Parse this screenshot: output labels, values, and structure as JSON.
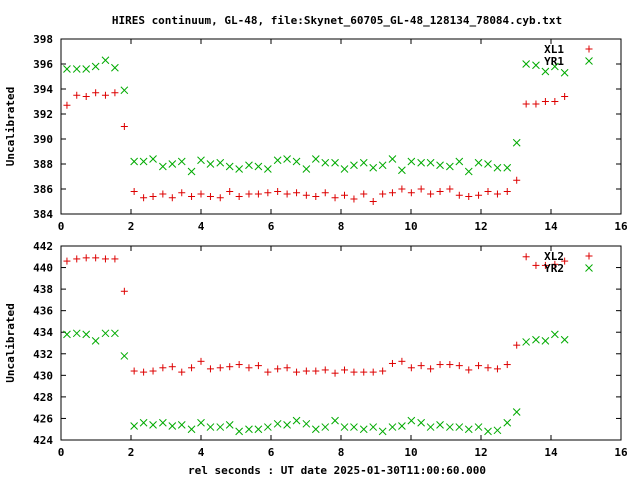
{
  "title": "HIRES continuum, GL-48, file:Skynet_60705_GL-48_128134_78084.cyb.txt",
  "xlabel": "rel seconds : UT date 2025-01-30T11:00:60.000",
  "colors": {
    "red": "#dd0000",
    "green": "#00aa00"
  },
  "chart_data": [
    {
      "type": "scatter",
      "ylabel": "Uncalibrated",
      "xlim": [
        0,
        16
      ],
      "ylim": [
        384,
        398
      ],
      "xticks": [
        0,
        2,
        4,
        6,
        8,
        10,
        12,
        14,
        16
      ],
      "yticks": [
        384,
        386,
        388,
        390,
        392,
        394,
        396,
        398
      ],
      "legend_position": "top-right",
      "series": [
        {
          "name": "XL1",
          "marker": "plus",
          "color": "#dd0000",
          "x": [
            0.17,
            0.45,
            0.72,
            0.99,
            1.27,
            1.54,
            1.81,
            2.09,
            2.36,
            2.63,
            2.91,
            3.18,
            3.45,
            3.73,
            4.0,
            4.27,
            4.55,
            4.82,
            5.09,
            5.37,
            5.64,
            5.91,
            6.19,
            6.46,
            6.73,
            7.01,
            7.28,
            7.55,
            7.83,
            8.1,
            8.37,
            8.65,
            8.92,
            9.19,
            9.47,
            9.74,
            10.01,
            10.29,
            10.56,
            10.83,
            11.11,
            11.38,
            11.65,
            11.93,
            12.2,
            12.47,
            12.75,
            13.02,
            13.29,
            13.57,
            13.84,
            14.11,
            14.39
          ],
          "y": [
            392.7,
            393.5,
            393.4,
            393.7,
            393.5,
            393.7,
            391.0,
            385.8,
            385.3,
            385.4,
            385.6,
            385.3,
            385.7,
            385.4,
            385.6,
            385.4,
            385.3,
            385.8,
            385.4,
            385.6,
            385.6,
            385.7,
            385.8,
            385.6,
            385.7,
            385.5,
            385.4,
            385.7,
            385.3,
            385.5,
            385.2,
            385.6,
            385.0,
            385.6,
            385.7,
            386.0,
            385.7,
            386.0,
            385.6,
            385.8,
            386.0,
            385.5,
            385.4,
            385.5,
            385.8,
            385.6,
            385.8,
            386.7,
            392.8,
            392.8,
            393.0,
            393.0,
            393.4
          ]
        },
        {
          "name": "YR1",
          "marker": "cross",
          "color": "#00aa00",
          "x": [
            0.17,
            0.45,
            0.72,
            0.99,
            1.27,
            1.54,
            1.81,
            2.09,
            2.36,
            2.63,
            2.91,
            3.18,
            3.45,
            3.73,
            4.0,
            4.27,
            4.55,
            4.82,
            5.09,
            5.37,
            5.64,
            5.91,
            6.19,
            6.46,
            6.73,
            7.01,
            7.28,
            7.55,
            7.83,
            8.1,
            8.37,
            8.65,
            8.92,
            9.19,
            9.47,
            9.74,
            10.01,
            10.29,
            10.56,
            10.83,
            11.11,
            11.38,
            11.65,
            11.93,
            12.2,
            12.47,
            12.75,
            13.02,
            13.29,
            13.57,
            13.84,
            14.11,
            14.39
          ],
          "y": [
            395.6,
            395.6,
            395.6,
            395.8,
            396.3,
            395.7,
            393.9,
            388.2,
            388.2,
            388.4,
            387.8,
            388.0,
            388.2,
            387.4,
            388.3,
            388.0,
            388.1,
            387.8,
            387.6,
            387.9,
            387.8,
            387.6,
            388.3,
            388.4,
            388.2,
            387.6,
            388.4,
            388.1,
            388.1,
            387.6,
            387.9,
            388.1,
            387.7,
            387.9,
            388.4,
            387.5,
            388.2,
            388.1,
            388.1,
            387.9,
            387.8,
            388.2,
            387.4,
            388.1,
            388.0,
            387.7,
            387.7,
            389.7,
            396.0,
            395.9,
            395.4,
            395.8,
            395.3
          ]
        }
      ]
    },
    {
      "type": "scatter",
      "ylabel": "Uncalibrated",
      "xlim": [
        0,
        16
      ],
      "ylim": [
        424,
        442
      ],
      "xticks": [
        0,
        2,
        4,
        6,
        8,
        10,
        12,
        14,
        16
      ],
      "yticks": [
        424,
        426,
        428,
        430,
        432,
        434,
        436,
        438,
        440,
        442
      ],
      "legend_position": "top-right",
      "series": [
        {
          "name": "XL2",
          "marker": "plus",
          "color": "#dd0000",
          "x": [
            0.17,
            0.45,
            0.72,
            0.99,
            1.27,
            1.54,
            1.81,
            2.09,
            2.36,
            2.63,
            2.91,
            3.18,
            3.45,
            3.73,
            4.0,
            4.27,
            4.55,
            4.82,
            5.09,
            5.37,
            5.64,
            5.91,
            6.19,
            6.46,
            6.73,
            7.01,
            7.28,
            7.55,
            7.83,
            8.1,
            8.37,
            8.65,
            8.92,
            9.19,
            9.47,
            9.74,
            10.01,
            10.29,
            10.56,
            10.83,
            11.11,
            11.38,
            11.65,
            11.93,
            12.2,
            12.47,
            12.75,
            13.02,
            13.29,
            13.57,
            13.84,
            14.11,
            14.39
          ],
          "y": [
            440.6,
            440.8,
            440.9,
            440.9,
            440.8,
            440.8,
            437.8,
            430.4,
            430.3,
            430.4,
            430.7,
            430.8,
            430.3,
            430.7,
            431.3,
            430.6,
            430.7,
            430.8,
            431.0,
            430.7,
            430.9,
            430.3,
            430.6,
            430.7,
            430.3,
            430.4,
            430.4,
            430.5,
            430.2,
            430.5,
            430.3,
            430.3,
            430.3,
            430.4,
            431.1,
            431.3,
            430.7,
            430.9,
            430.6,
            431.0,
            431.0,
            430.9,
            430.5,
            430.9,
            430.7,
            430.6,
            431.0,
            432.8,
            441.0,
            440.2,
            440.2,
            440.3,
            440.6
          ]
        },
        {
          "name": "YR2",
          "marker": "cross",
          "color": "#00aa00",
          "x": [
            0.17,
            0.45,
            0.72,
            0.99,
            1.27,
            1.54,
            1.81,
            2.09,
            2.36,
            2.63,
            2.91,
            3.18,
            3.45,
            3.73,
            4.0,
            4.27,
            4.55,
            4.82,
            5.09,
            5.37,
            5.64,
            5.91,
            6.19,
            6.46,
            6.73,
            7.01,
            7.28,
            7.55,
            7.83,
            8.1,
            8.37,
            8.65,
            8.92,
            9.19,
            9.47,
            9.74,
            10.01,
            10.29,
            10.56,
            10.83,
            11.11,
            11.38,
            11.65,
            11.93,
            12.2,
            12.47,
            12.75,
            13.02,
            13.29,
            13.57,
            13.84,
            14.11,
            14.39
          ],
          "y": [
            433.8,
            433.9,
            433.8,
            433.2,
            433.9,
            433.9,
            431.8,
            425.3,
            425.6,
            425.4,
            425.6,
            425.3,
            425.4,
            425.0,
            425.6,
            425.2,
            425.2,
            425.4,
            424.8,
            425.0,
            425.0,
            425.2,
            425.5,
            425.4,
            425.8,
            425.5,
            425.0,
            425.2,
            425.8,
            425.2,
            425.2,
            425.0,
            425.2,
            424.8,
            425.2,
            425.3,
            425.8,
            425.6,
            425.2,
            425.4,
            425.2,
            425.2,
            425.0,
            425.2,
            424.8,
            424.9,
            425.6,
            426.6,
            433.1,
            433.3,
            433.2,
            433.8,
            433.3
          ]
        }
      ]
    }
  ]
}
